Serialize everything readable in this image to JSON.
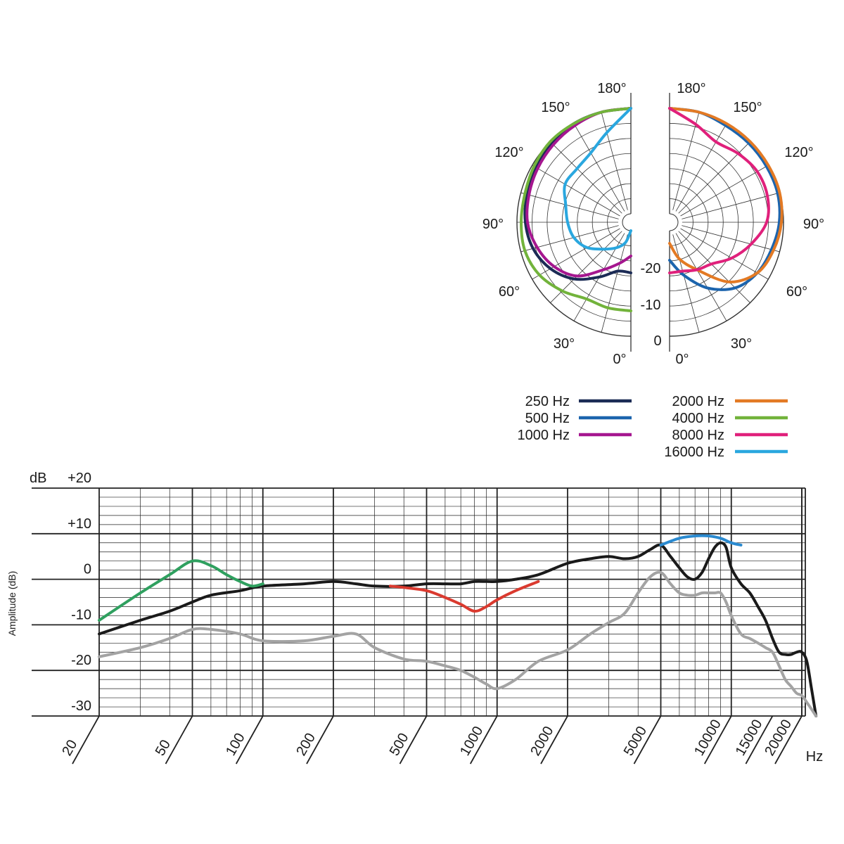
{
  "chart_data": [
    {
      "type": "polar",
      "chart_id": "polar",
      "angle_labels_left": [
        "180°",
        "150°",
        "120°",
        "90°",
        "60°",
        "30°",
        "0°"
      ],
      "angle_labels_right": [
        "180°",
        "150°",
        "120°",
        "90°",
        "60°",
        "30°",
        "0°"
      ],
      "radial_labels": [
        "-20",
        "-10",
        "0"
      ],
      "angles": [
        0,
        15,
        30,
        45,
        60,
        75,
        90,
        105,
        120,
        135,
        150,
        165,
        180
      ],
      "angle_unit": "degrees",
      "radial_unit": "dB",
      "radial_range": [
        -25,
        0
      ],
      "series": [
        {
          "name": "250 Hz",
          "color": "#1b2b55",
          "side": "left",
          "values": [
            -15,
            -15,
            -12,
            -8,
            -5,
            -3,
            -2,
            -1.5,
            -1,
            -0.5,
            0,
            0,
            0
          ]
        },
        {
          "name": "500 Hz",
          "color": "#1c64ad",
          "side": "right",
          "values": [
            -18,
            -14,
            -9,
            -5,
            -3,
            -2,
            -1,
            -0.5,
            -0.5,
            -0.5,
            -0.5,
            0,
            0
          ]
        },
        {
          "name": "1000 Hz",
          "color": "#a5168f",
          "side": "left",
          "values": [
            -19,
            -17,
            -14,
            -9,
            -6,
            -4,
            -2.5,
            -2,
            -1.5,
            -1,
            -0.5,
            0,
            0
          ]
        },
        {
          "name": "2000 Hz",
          "color": "#e37a24",
          "side": "right",
          "values": [
            -22,
            -18,
            -14,
            -7,
            -3,
            -1.5,
            -0.5,
            0,
            0,
            0,
            0,
            0,
            0
          ]
        },
        {
          "name": "4000 Hz",
          "color": "#72b33b",
          "side": "left",
          "values": [
            -6,
            -6,
            -6,
            -4,
            -2,
            -1,
            -1,
            -1,
            -0.5,
            0,
            0,
            0,
            0
          ]
        },
        {
          "name": "8000 Hz",
          "color": "#e0207b",
          "side": "right",
          "values": [
            -15,
            -15,
            -14,
            -13,
            -10,
            -7,
            -4,
            -3,
            -3,
            -4,
            -5,
            -3,
            0
          ]
        },
        {
          "name": "16000 Hz",
          "color": "#2aa7df",
          "side": "left",
          "values": [
            -25,
            -22,
            -20,
            -18,
            -15,
            -13,
            -12,
            -11,
            -9,
            -9,
            -8,
            -5,
            0
          ]
        }
      ]
    },
    {
      "type": "line",
      "chart_id": "frequency-response",
      "xscale": "log",
      "xlim": [
        20,
        23000
      ],
      "ylim": [
        -30,
        20
      ],
      "x_unit": "Hz",
      "ylabel": "Amplitude (dB)",
      "y_unit": "dB",
      "y_ticks": [
        20,
        10,
        0,
        -10,
        -20,
        -30
      ],
      "y_tick_labels": [
        "+20",
        "+10",
        "0",
        "-10",
        "-20",
        "-30"
      ],
      "x_tick_labels": [
        "20",
        "50",
        "100",
        "200",
        "500",
        "1000",
        "2000",
        "5000",
        "10000",
        "15000",
        "20000"
      ],
      "x_tick_values": [
        20,
        50,
        100,
        200,
        500,
        1000,
        2000,
        5000,
        10000,
        15000,
        20000
      ],
      "grid": true,
      "series": [
        {
          "color": "#1a1a1a",
          "x": [
            20,
            30,
            40,
            50,
            60,
            80,
            100,
            150,
            200,
            250,
            300,
            400,
            500,
            600,
            700,
            800,
            900,
            1000,
            1200,
            1500,
            2000,
            2500,
            3000,
            3500,
            4000,
            4500,
            5000,
            5500,
            6000,
            6500,
            7000,
            7500,
            8000,
            8500,
            9000,
            9500,
            10000,
            11000,
            12000,
            13000,
            14000,
            15000,
            16000,
            17000,
            18000,
            19000,
            20000,
            21000,
            22000,
            23000
          ],
          "y": [
            -12,
            -9,
            -7,
            -5,
            -3.5,
            -2.5,
            -1.5,
            -1,
            -0.5,
            -1,
            -1.5,
            -1.5,
            -1,
            -1,
            -1,
            -0.5,
            -0.5,
            -0.5,
            0,
            1,
            3.5,
            4.5,
            5,
            4.5,
            5,
            6.5,
            7.5,
            5,
            2.5,
            0.5,
            0,
            1.5,
            4.5,
            7,
            8,
            7,
            2.5,
            -1,
            -3,
            -6,
            -9,
            -13,
            -16,
            -16.5,
            -16.5,
            -16,
            -16,
            -18,
            -24,
            -30
          ]
        },
        {
          "color": "#a3a3a3",
          "x": [
            20,
            30,
            40,
            50,
            60,
            80,
            100,
            150,
            200,
            250,
            300,
            400,
            500,
            600,
            700,
            800,
            900,
            1000,
            1200,
            1500,
            2000,
            2500,
            3000,
            3500,
            4000,
            4500,
            5000,
            5500,
            6000,
            6500,
            7000,
            7500,
            8000,
            8500,
            9000,
            9500,
            10000,
            11000,
            12000,
            13000,
            14000,
            15000,
            16000,
            17000,
            18000,
            19000,
            20000,
            21000,
            22000,
            23000
          ],
          "y": [
            -17,
            -15,
            -13,
            -11,
            -11,
            -12,
            -13.5,
            -13.5,
            -12.5,
            -12,
            -15,
            -17.5,
            -18,
            -19,
            -20,
            -21.5,
            -23,
            -24,
            -22,
            -18,
            -15.5,
            -12,
            -9.5,
            -7.5,
            -3,
            0.5,
            1.5,
            -1,
            -3,
            -3.5,
            -3.5,
            -3,
            -3,
            -3,
            -3,
            -5,
            -8,
            -12,
            -13,
            -14,
            -15,
            -16,
            -19,
            -22,
            -23.5,
            -25,
            -25.5,
            -27,
            -28.5,
            -30
          ]
        },
        {
          "color": "#2fa05f",
          "x": [
            20,
            30,
            40,
            50,
            60,
            70,
            80,
            90,
            100
          ],
          "y": [
            -9,
            -3,
            1,
            4,
            3,
            1,
            -0.5,
            -1.5,
            -1
          ]
        },
        {
          "color": "#da3a2f",
          "x": [
            350,
            400,
            500,
            600,
            700,
            800,
            900,
            1000,
            1200,
            1500
          ],
          "y": [
            -1.5,
            -1.8,
            -2.5,
            -4,
            -5.5,
            -7,
            -6,
            -4.5,
            -2.5,
            -0.5
          ]
        },
        {
          "color": "#2a8ad0",
          "x": [
            5000,
            6000,
            7000,
            8000,
            9000,
            10000,
            11000
          ],
          "y": [
            7.5,
            9,
            9.5,
            9.5,
            9,
            8,
            7.5
          ]
        }
      ]
    }
  ]
}
